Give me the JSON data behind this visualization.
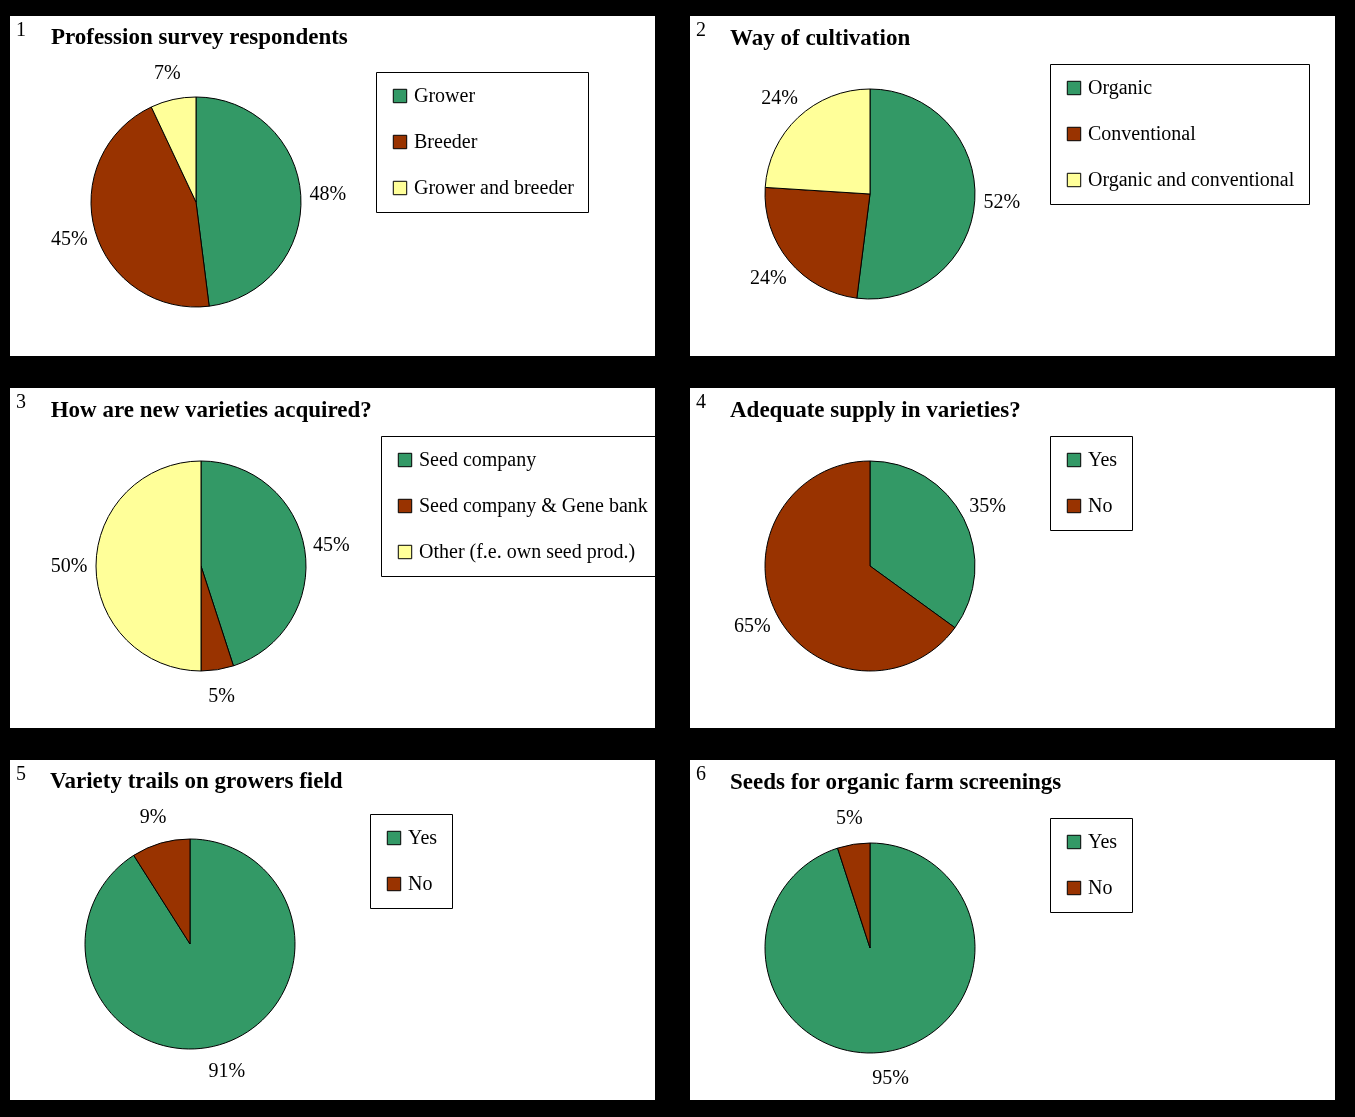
{
  "chart_data": [
    {
      "type": "pie",
      "title": "Profession survey respondents",
      "annotations": [
        "1"
      ],
      "categories": [
        "Grower",
        "Breeder",
        "Grower and breeder"
      ],
      "values": [
        48,
        45,
        7
      ],
      "value_labels": [
        "48%",
        "45%",
        "7%"
      ],
      "colors": [
        "#339966",
        "#993300",
        "#ffff99"
      ],
      "legend": "right"
    },
    {
      "type": "pie",
      "title": "Way of cultivation",
      "annotations": [
        "2"
      ],
      "categories": [
        "Organic",
        "Conventional",
        "Organic and conventional"
      ],
      "values": [
        52,
        24,
        24
      ],
      "value_labels": [
        "52%",
        "24%",
        "24%"
      ],
      "colors": [
        "#339966",
        "#993300",
        "#ffff99"
      ],
      "legend": "right"
    },
    {
      "type": "pie",
      "title": "How are new varieties acquired?",
      "annotations": [
        "3"
      ],
      "categories": [
        "Seed company",
        "Seed company & Gene bank",
        "Other (f.e. own seed prod.)"
      ],
      "values": [
        45,
        5,
        50
      ],
      "value_labels": [
        "45%",
        "5%",
        "50%"
      ],
      "colors": [
        "#339966",
        "#993300",
        "#ffff99"
      ],
      "legend": "right"
    },
    {
      "type": "pie",
      "title": "Adequate supply in varieties?",
      "annotations": [
        "4"
      ],
      "categories": [
        "Yes",
        "No"
      ],
      "values": [
        35,
        65
      ],
      "value_labels": [
        "35%",
        "65%"
      ],
      "colors": [
        "#339966",
        "#993300"
      ],
      "legend": "right"
    },
    {
      "type": "pie",
      "title": "Variety trails on growers field",
      "annotations": [
        "5"
      ],
      "categories": [
        "Yes",
        "No"
      ],
      "values": [
        91,
        9
      ],
      "value_labels": [
        "91%",
        "9%"
      ],
      "colors": [
        "#339966",
        "#993300"
      ],
      "legend": "right"
    },
    {
      "type": "pie",
      "title": "Seeds for organic farm screenings",
      "annotations": [
        "6"
      ],
      "categories": [
        "Yes",
        "No"
      ],
      "values": [
        95,
        5
      ],
      "value_labels": [
        "95%",
        "5%"
      ],
      "colors": [
        "#339966",
        "#993300"
      ],
      "legend": "right"
    }
  ]
}
